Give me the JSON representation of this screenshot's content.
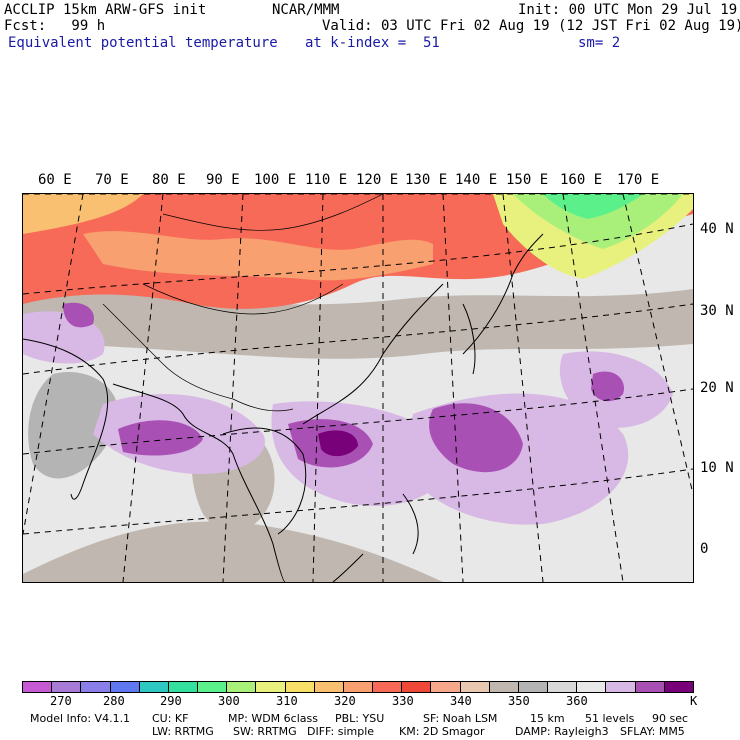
{
  "header": {
    "title_left": "ACCLIP 15km ARW-GFS init",
    "forecast": "Fcst:   99 h",
    "field_name": "Equivalent potential temperature",
    "center": "NCAR/MMM",
    "level": "at k-index =  51",
    "init": "Init: 00 UTC Mon 29 Jul 19",
    "valid": "Valid: 03 UTC Fri 02 Aug 19 (12 JST Fri 02 Aug 19)",
    "smooth": "sm= 2"
  },
  "map": {
    "lon_labels": [
      "60 E",
      "70 E",
      "80 E",
      "90 E",
      "100 E",
      "110 E",
      "120 E",
      "130 E",
      "140 E",
      "150 E",
      "160 E",
      "170 E"
    ],
    "lat_labels": [
      "40 N",
      "30 N",
      "20 N",
      "10 N",
      "0"
    ]
  },
  "colorbar": {
    "colors": [
      "#c65ad2",
      "#a87bd6",
      "#8a7fe8",
      "#5f78f0",
      "#2ec7c2",
      "#34e09e",
      "#5cf08a",
      "#a8f07a",
      "#e8f07e",
      "#f8e068",
      "#f8c070",
      "#f8a070",
      "#f86a58",
      "#f04838",
      "#f8a88a",
      "#e8c8b0",
      "#c0b8b0",
      "#b4b4b4",
      "#d8d8d8",
      "#e8e8e8",
      "#d8b8e4",
      "#a850b4",
      "#780078"
    ],
    "labels": [
      "270",
      "280",
      "290",
      "300",
      "310",
      "320",
      "330",
      "340",
      "350",
      "360"
    ],
    "unit": "K"
  },
  "footer": {
    "line1": [
      "Model Info: V4.1.1",
      "CU: KF",
      "MP: WDM 6class",
      "PBL: YSU",
      "SF: Noah LSM",
      "15 km",
      "51 levels",
      "90 sec"
    ],
    "line2": [
      "LW: RRTMG",
      "SW: RRTMG",
      "DIFF: simple",
      "KM: 2D Smagor",
      "DAMP: Rayleigh3",
      "SFLAY: MM5"
    ]
  }
}
